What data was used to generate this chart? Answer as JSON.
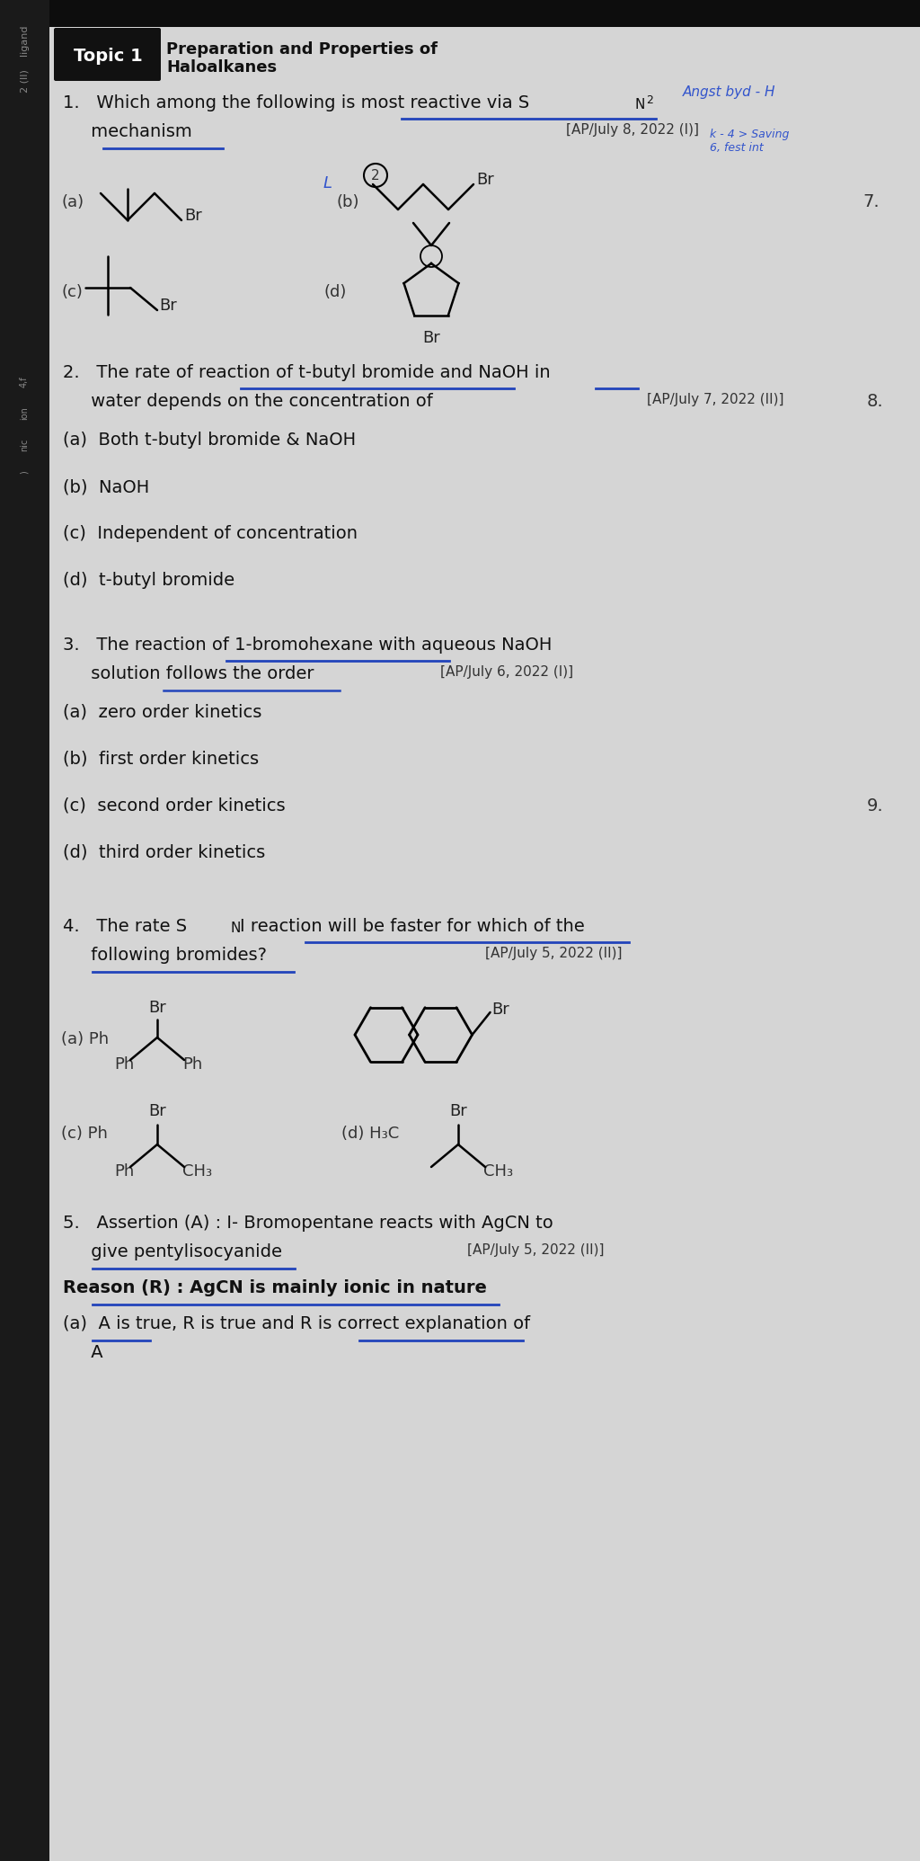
{
  "bg_color": "#b0b0b0",
  "page_bg": "#d8d8d8",
  "left_stripe_color": "#1a1a1a",
  "top_bar_color": "#111111",
  "title_box_color": "#111111",
  "title_text_color": "#ffffff",
  "title_label": "Topic 1",
  "title_main1": "Preparation and Properties of",
  "title_main2": "Haloalkanes",
  "q1_line1": "1.   Which among the following is most reactive via S",
  "q1_line2": "     mechanism",
  "q1_ref": "[AP/July 8, 2022 (I)]",
  "q1_handwrite1": "Angst byd - H",
  "q1_handwrite2": "k - 4 > Saviř\n6, fest int",
  "q2_line1": "2.   The rate of reaction of t-butyl bromide and NaOH in",
  "q2_line2": "     water depends on the concentration of",
  "q2_ref": "[AP/July 7, 2022 (II)]",
  "q2_num": "8.",
  "q2_opts": [
    "(a)  Both t-butyl bromide & NaOH",
    "(b)  NaOH",
    "(c)  Independent of concentration",
    "(d)  t-butyl bromide"
  ],
  "q3_line1": "3.   The reaction of 1-bromohexane with aqueous NaOH",
  "q3_line2": "     solution follows the order",
  "q3_ref": "[AP/July 6, 2022 (I)]",
  "q3_opts": [
    "(a)  zero order kinetics",
    "(b)  first order kinetics",
    "(c)  second order kinetics",
    "(d)  third order kinetics"
  ],
  "q3_num": "9.",
  "q4_line1": "4.   The rate S",
  "q4_line1b": "I reaction will be faster for which of the",
  "q4_line2": "     following bromides?",
  "q4_ref": "[AP/July 5, 2022 (II)]",
  "q5_line1": "5.   Assertion (A) : I- Bromopentane reacts with AgCN to",
  "q5_line2": "     give pentylisocyanide",
  "q5_ref": "[AP/July 5, 2022 (II)]",
  "q5_reason": "Reason (R) : AgCN is mainly ionic in nature",
  "q5_opt_a1": "(a)  A is true, R is true and R is correct explanation of",
  "q5_opt_a2": "     A",
  "num7": "7.",
  "left_texts": [
    "ligand",
    "2 (II)",
    "4,f",
    "ion",
    "nic",
    ")"
  ]
}
